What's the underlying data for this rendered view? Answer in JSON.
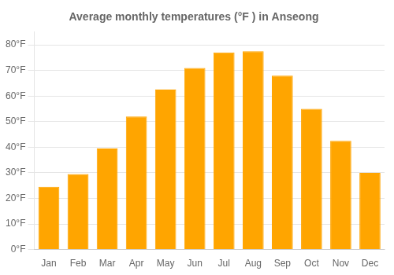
{
  "chart_data": {
    "type": "bar",
    "title": "Average monthly temperatures (°F ) in Anseong",
    "categories": [
      "Jan",
      "Feb",
      "Mar",
      "Apr",
      "May",
      "Jun",
      "Jul",
      "Aug",
      "Sep",
      "Oct",
      "Nov",
      "Dec"
    ],
    "values": [
      24.5,
      29.5,
      39.5,
      52.0,
      62.5,
      71.0,
      77.0,
      77.5,
      68.0,
      55.0,
      42.5,
      30.0
    ],
    "color": "#FFA500",
    "ylim": [
      0,
      85
    ],
    "yticks": [
      {
        "value": 0,
        "label": "0°F"
      },
      {
        "value": 10,
        "label": "10°F"
      },
      {
        "value": 20,
        "label": "20°F"
      },
      {
        "value": 30,
        "label": "30°F"
      },
      {
        "value": 40,
        "label": "40°F"
      },
      {
        "value": 50,
        "label": "50°F"
      },
      {
        "value": 60,
        "label": "60°F"
      },
      {
        "value": 70,
        "label": "70°F"
      },
      {
        "value": 80,
        "label": "80°F"
      }
    ],
    "grid": true
  }
}
